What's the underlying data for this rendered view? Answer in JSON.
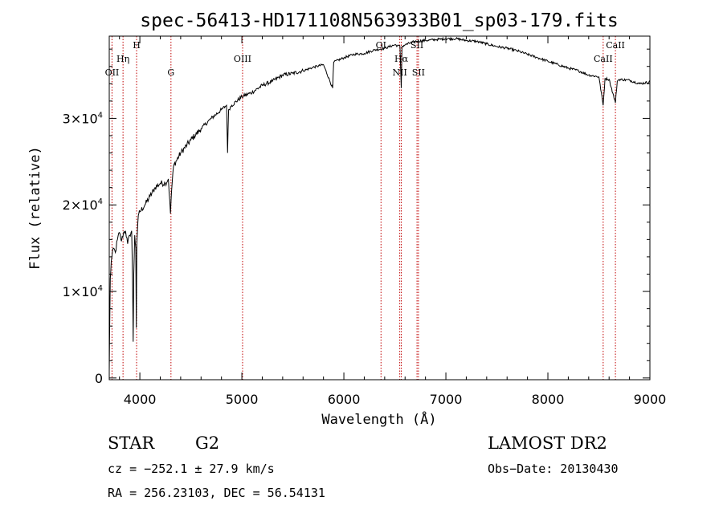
{
  "chart_data": {
    "type": "line",
    "title": "spec-56413-HD171108N563933B01_sp03-179.fits",
    "xlabel": "Wavelength (Å)",
    "ylabel": "Flux (relative)",
    "xlim": [
      3700,
      9000
    ],
    "ylim": [
      -200,
      39500
    ],
    "x_ticks": [
      {
        "value": 4000,
        "label": "4000"
      },
      {
        "value": 5000,
        "label": "5000"
      },
      {
        "value": 6000,
        "label": "6000"
      },
      {
        "value": 7000,
        "label": "7000"
      },
      {
        "value": 8000,
        "label": "8000"
      },
      {
        "value": 9000,
        "label": "9000"
      }
    ],
    "y_ticks": [
      {
        "value": 0,
        "mant": "0",
        "exp": ""
      },
      {
        "value": 10000,
        "mant": "1×10",
        "exp": "4"
      },
      {
        "value": 20000,
        "mant": "2×10",
        "exp": "4"
      },
      {
        "value": 30000,
        "mant": "3×10",
        "exp": "4"
      }
    ],
    "series": [
      {
        "x": [
          3700,
          3710,
          3720,
          3740,
          3760,
          3780,
          3800,
          3820,
          3840,
          3860,
          3880,
          3900,
          3920,
          3930,
          3935,
          3940,
          3950,
          3960,
          3965,
          3970,
          3980,
          3990,
          4000,
          4050,
          4100,
          4150,
          4200,
          4250,
          4280,
          4300,
          4310,
          4330,
          4400,
          4500,
          4600,
          4700,
          4800,
          4850,
          4860,
          4870,
          4900,
          5000,
          5100,
          5200,
          5300,
          5400,
          5500,
          5600,
          5700,
          5800,
          5890,
          5900,
          6000,
          6100,
          6200,
          6300,
          6400,
          6500,
          6550,
          6563,
          6570,
          6600,
          6700,
          6800,
          6900,
          7000,
          7100,
          7200,
          7300,
          7400,
          7500,
          7600,
          7700,
          7800,
          7900,
          8000,
          8100,
          8200,
          8300,
          8400,
          8500,
          8542,
          8560,
          8600,
          8662,
          8680,
          8700,
          8800,
          8900,
          9000
        ],
        "y": [
          800,
          11500,
          13500,
          15000,
          14500,
          16000,
          16800,
          15800,
          16800,
          17000,
          15500,
          16500,
          17000,
          10000,
          4200,
          12000,
          16500,
          15000,
          5800,
          15500,
          18000,
          19000,
          19200,
          20000,
          21000,
          22000,
          22500,
          22500,
          23000,
          19000,
          21500,
          24500,
          26000,
          27500,
          28800,
          30000,
          31000,
          31500,
          26000,
          31000,
          31500,
          32500,
          33000,
          33800,
          34300,
          35000,
          35200,
          35500,
          35900,
          36200,
          33500,
          36500,
          37000,
          37400,
          37500,
          37900,
          38100,
          38500,
          38300,
          33500,
          38300,
          38500,
          38900,
          39000,
          39100,
          39200,
          39200,
          39000,
          38900,
          38600,
          38300,
          38100,
          37800,
          37400,
          37000,
          36600,
          36200,
          35800,
          35500,
          35000,
          34800,
          31500,
          34600,
          34500,
          31800,
          34300,
          34500,
          34400,
          34000,
          34200
        ]
      }
    ],
    "spectral_lines": [
      {
        "name": "OII",
        "x": 3727,
        "row": 3
      },
      {
        "name": "Hη",
        "x": 3835,
        "row": 2
      },
      {
        "name": "H",
        "x": 3968,
        "row": 1
      },
      {
        "name": "G",
        "x": 4305,
        "row": 3
      },
      {
        "name": "OIII",
        "x": 5007,
        "row": 2
      },
      {
        "name": "OI",
        "x": 6364,
        "row": 1
      },
      {
        "name": "Hα",
        "x": 6563,
        "row": 2
      },
      {
        "name": "NII",
        "x": 6548,
        "row": 3
      },
      {
        "name": "SII",
        "x": 6717,
        "row": 1
      },
      {
        "name": "SII",
        "x": 6731,
        "row": 3
      },
      {
        "name": "CaII",
        "x": 8542,
        "row": 2
      },
      {
        "name": "CaII",
        "x": 8662,
        "row": 1
      }
    ]
  },
  "info": {
    "obj_class": "STAR",
    "subclass": "G2",
    "survey": "LAMOST DR2",
    "cz": "cz = −252.1 ± 27.9 km/s",
    "obs_date": "Obs−Date: 20130430",
    "coords": "RA = 256.23103, DEC =  56.54131"
  }
}
